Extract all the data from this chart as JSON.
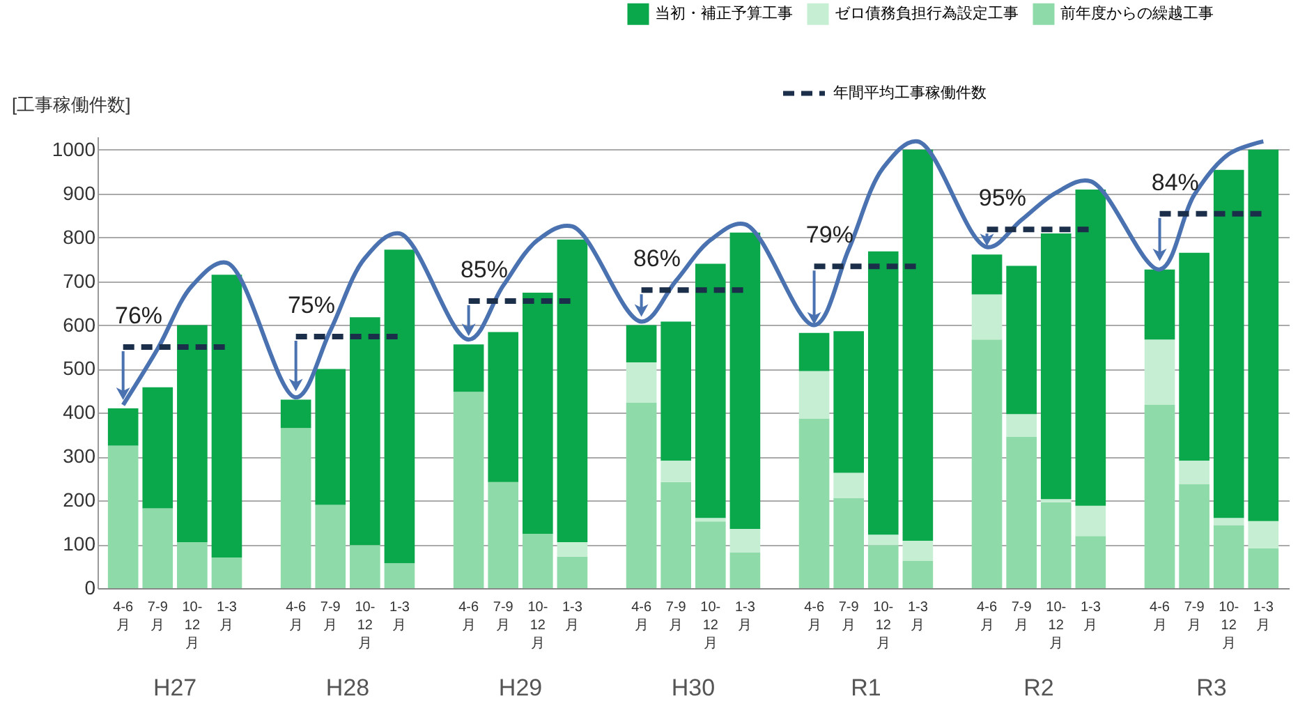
{
  "chart_data": {
    "type": "bar",
    "stacked": true,
    "ylabel": "[工事稼働件数]",
    "ylim": [
      0,
      1030
    ],
    "yticks": [
      0,
      100,
      200,
      300,
      400,
      500,
      600,
      700,
      800,
      900,
      1000
    ],
    "grid": "y",
    "legend": "top right",
    "categories": [
      "4-6月",
      "7-9月",
      "10-12月",
      "1-3月",
      "4-6月",
      "7-9月",
      "10-12月",
      "1-3月",
      "4-6月",
      "7-9月",
      "10-12月",
      "1-3月",
      "4-6月",
      "7-9月",
      "10-12月",
      "1-3月",
      "4-6月",
      "7-9月",
      "10-12月",
      "1-3月",
      "4-6月",
      "7-9月",
      "10-12月",
      "1-3月",
      "4-6月",
      "7-9月",
      "10-12月",
      "1-3月"
    ],
    "series": [
      {
        "name": "前年度からの繰越工事",
        "color": "#8edaa8",
        "values": [
          325,
          182,
          105,
          70,
          365,
          190,
          98,
          57,
          448,
          242,
          124,
          72,
          423,
          242,
          152,
          82,
          387,
          206,
          98,
          62,
          567,
          345,
          196,
          119,
          418,
          237,
          144,
          91
        ]
      },
      {
        "name": "ゼロ債務負担行為設定工事",
        "color": "#c6eed3",
        "values": [
          0,
          0,
          0,
          0,
          0,
          0,
          0,
          0,
          0,
          0,
          0,
          33,
          92,
          49,
          8,
          53,
          108,
          57,
          24,
          46,
          103,
          52,
          7,
          69,
          149,
          54,
          16,
          62
        ]
      },
      {
        "name": "当初・補正予算工事",
        "color": "#0aa84a",
        "values": [
          85,
          276,
          495,
          645,
          65,
          310,
          520,
          715,
          108,
          342,
          550,
          690,
          85,
          317,
          580,
          676,
          87,
          323,
          646,
          892,
          91,
          338,
          606,
          721,
          160,
          474,
          794,
          847
        ]
      },
      {
        "type": "line",
        "color": "#4a72b0",
        "values": [
          418,
          546,
          690,
          742,
          435,
          588,
          753,
          809,
          567,
          690,
          794,
          825,
          608,
          701,
          794,
          830,
          600,
          773,
          959,
          1019,
          778,
          840,
          902,
          928,
          727,
          897,
          990,
          1019
        ]
      },
      {
        "type": "line",
        "name": "年間平均工事稼働件数",
        "color": "#1c2f4a",
        "line_style": "dashed",
        "values": [
          550,
          550,
          550,
          550,
          574,
          574,
          574,
          574,
          655,
          655,
          655,
          655,
          680,
          680,
          680,
          680,
          734,
          734,
          734,
          734,
          818,
          818,
          818,
          818,
          854,
          854,
          854,
          854
        ]
      }
    ],
    "annotations": [
      "H27",
      "H28",
      "H29",
      "H30",
      "R1",
      "R2",
      "R3",
      {
        "text": "76%",
        "y": 550
      },
      {
        "text": "75%",
        "y": 574
      },
      {
        "text": "85%",
        "y": 655
      },
      {
        "text": "86%",
        "y": 680
      },
      {
        "text": "79%",
        "y": 734
      },
      {
        "text": "95%",
        "y": 818
      },
      {
        "text": "84%",
        "y": 854
      }
    ]
  }
}
